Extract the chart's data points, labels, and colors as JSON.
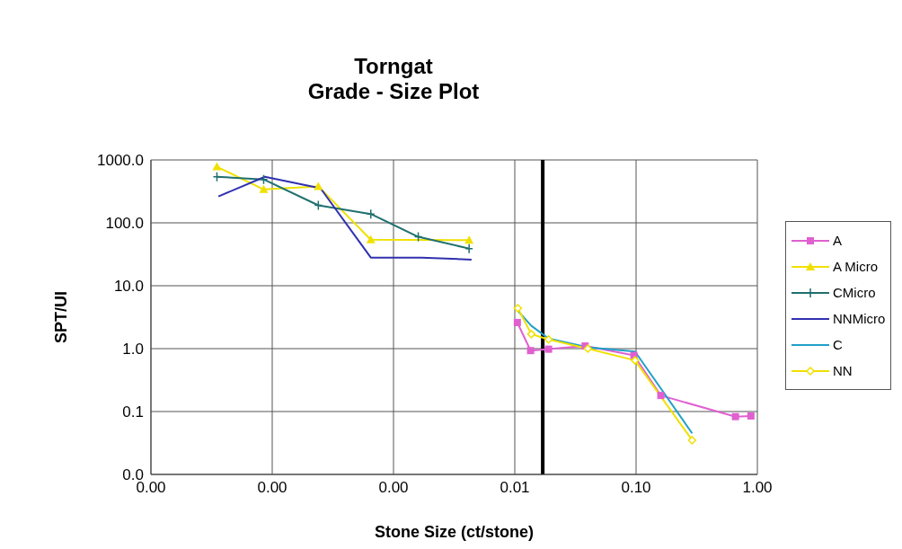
{
  "chart_data": {
    "type": "line",
    "title": "Torngat",
    "subtitle": "Grade - Size Plot",
    "xlabel": "Stone Size (ct/stone)",
    "ylabel": "SPT/UI",
    "log": "xy",
    "grid": true,
    "legend": "right",
    "xlim": [
      1e-05,
      1
    ],
    "xticks": [
      {
        "value": 1e-05,
        "label": "0.00"
      },
      {
        "value": 0.0001,
        "label": "0.00"
      },
      {
        "value": 0.001,
        "label": "0.00"
      },
      {
        "value": 0.01,
        "label": "0.01"
      },
      {
        "value": 0.1,
        "label": "0.10"
      },
      {
        "value": 1,
        "label": "1.00"
      }
    ],
    "ylim": [
      0.01,
      1000
    ],
    "yticks": [
      {
        "value": 0.01,
        "label": "0.0"
      },
      {
        "value": 0.1,
        "label": "0.1"
      },
      {
        "value": 1,
        "label": "1.0"
      },
      {
        "value": 10,
        "label": "10.0"
      },
      {
        "value": 100,
        "label": "100.0"
      },
      {
        "value": 1000,
        "label": "1000.0"
      }
    ],
    "ref_lines": [
      {
        "axis": "x",
        "value": 0.017,
        "color": "#000000"
      }
    ],
    "series": [
      {
        "name": "A",
        "color": "#e060d0",
        "marker": "square",
        "x": [
          0.0105,
          0.0135,
          0.019,
          0.038,
          0.096,
          0.16,
          0.66,
          0.885
        ],
        "values": [
          2.6,
          0.93,
          0.98,
          1.1,
          0.78,
          0.18,
          0.083,
          0.085
        ]
      },
      {
        "name": "A Micro",
        "color": "#f0e000",
        "marker": "triangle",
        "x": [
          3.5e-05,
          8.5e-05,
          0.00024,
          0.00065,
          0.0042
        ],
        "values": [
          780,
          340,
          380,
          54,
          53
        ]
      },
      {
        "name": "CMicro",
        "color": "#1f6f6f",
        "marker": "cross",
        "x": [
          3.5e-05,
          8.5e-05,
          0.00024,
          0.00065,
          0.0016,
          0.0042
        ],
        "values": [
          540,
          490,
          190,
          138,
          60,
          39
        ]
      },
      {
        "name": "NNMicro",
        "color": "#3030b0",
        "marker": "none",
        "x": [
          3.6e-05,
          8.7e-05,
          0.00025,
          0.00065,
          0.0017,
          0.0044
        ],
        "values": [
          263,
          540,
          355,
          28,
          28,
          26
        ]
      },
      {
        "name": "C",
        "color": "#20a0c8",
        "marker": "none",
        "x": [
          0.0106,
          0.0137,
          0.019,
          0.04,
          0.098,
          0.29
        ],
        "values": [
          4.0,
          2.3,
          1.45,
          1.05,
          0.9,
          0.045
        ]
      },
      {
        "name": "NN",
        "color": "#f0e000",
        "marker": "diamond",
        "x": [
          0.0106,
          0.0137,
          0.019,
          0.04,
          0.098,
          0.29
        ],
        "values": [
          4.4,
          1.7,
          1.4,
          1.0,
          0.65,
          0.035
        ]
      }
    ]
  }
}
